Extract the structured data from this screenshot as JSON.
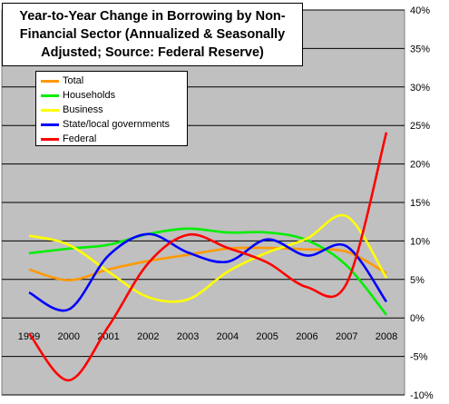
{
  "chart_data": {
    "type": "line",
    "title": [
      "Year-to-Year Change in Borrowing by Non-",
      "Financial Sector (Annualized & Seasonally",
      "Adjusted; Source: Federal Reserve)"
    ],
    "categories": [
      "1999",
      "2000",
      "2001",
      "2002",
      "2003",
      "2004",
      "2005",
      "2006",
      "2007",
      "2008"
    ],
    "y_ticks": [
      "40%",
      "35%",
      "30%",
      "25%",
      "20%",
      "15%",
      "10%",
      "5%",
      "0%",
      "-5%",
      "-10%"
    ],
    "ylim": [
      -10,
      40
    ],
    "grid": true,
    "legend_position": "top-left",
    "series": [
      {
        "name": "Total",
        "color": "#ff9900",
        "values": [
          6.3,
          4.9,
          6.3,
          7.4,
          8.2,
          9.0,
          9.1,
          8.9,
          8.6,
          5.8
        ]
      },
      {
        "name": "Households",
        "color": "#00ee00",
        "values": [
          8.4,
          9.0,
          9.5,
          10.9,
          11.6,
          11.1,
          11.1,
          10.1,
          6.8,
          0.4
        ]
      },
      {
        "name": "Business",
        "color": "#ffff00",
        "values": [
          10.7,
          9.5,
          6.0,
          2.7,
          2.4,
          6.0,
          8.5,
          10.3,
          13.2,
          5.2
        ]
      },
      {
        "name": "State/local governments",
        "color": "#0000ff",
        "values": [
          3.3,
          1.1,
          8.1,
          10.9,
          8.5,
          7.3,
          10.2,
          8.1,
          9.3,
          2.1
        ]
      },
      {
        "name": "Federal",
        "color": "#ff0000",
        "values": [
          -2.0,
          -8.1,
          -1.1,
          7.1,
          10.8,
          9.1,
          7.2,
          4.0,
          4.5,
          24.1
        ]
      }
    ]
  }
}
